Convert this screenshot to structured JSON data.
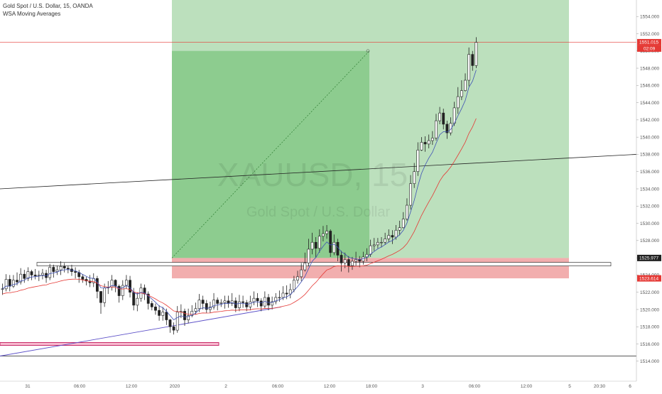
{
  "header": {
    "symbol_line": "Gold Spot / U.S. Dollar, 15, OANDA",
    "indicator_line": "WSA Moving Averages"
  },
  "watermark": {
    "symbol": "XAUUSD, 15",
    "description": "Gold Spot / U.S. Dollar"
  },
  "colors": {
    "bull": "#ffffff",
    "bear": "#222222",
    "wick": "#222222",
    "profit_zone": "#a5d6a7",
    "profit_zone_filled": "#66bb6a",
    "loss_zone": "#ef9a9a",
    "ma_fast": "#3f51b5",
    "ma_slow": "#e53935",
    "current_price_tag": "#e53935",
    "position_tag": "#212121",
    "trendline": "#5c50c8",
    "support_box": "#c2185b"
  },
  "price_axis": {
    "ticks": [
      "1554.000",
      "1552.000",
      "1550.000",
      "1548.000",
      "1546.000",
      "1544.000",
      "1542.000",
      "1540.000",
      "1538.000",
      "1536.000",
      "1534.000",
      "1532.000",
      "1530.000",
      "1528.000",
      "1526.000",
      "1524.000",
      "1522.000",
      "1520.000",
      "1518.000",
      "1516.000",
      "1514.000"
    ],
    "current_price": "1551.015",
    "countdown": "02:09",
    "entry_price": "1525.977",
    "stop_price": "1523.614"
  },
  "time_axis": {
    "ticks": [
      "31",
      "06:00",
      "12:00",
      "2020",
      "2",
      "06:00",
      "12:00",
      "18:00",
      "3",
      "06:00",
      "12:00",
      "5",
      "20:30",
      "6"
    ]
  },
  "chart_data": {
    "type": "candlestick",
    "title": "Gold Spot / U.S. Dollar, 15, OANDA",
    "subtitle": "WSA Moving Averages",
    "ylim": [
      1513.5,
      1555.5
    ],
    "grid": false,
    "bar_count": 131,
    "start_ohlc_o": 1522.4,
    "closes": [
      1522.4,
      1523.5,
      1522.7,
      1523.4,
      1523.2,
      1524.1,
      1523.6,
      1524.4,
      1524.0,
      1523.9,
      1524.0,
      1524.2,
      1523.7,
      1524.9,
      1524.4,
      1524.6,
      1525.0,
      1524.8,
      1524.7,
      1524.4,
      1524.3,
      1523.8,
      1523.5,
      1523.3,
      1523.1,
      1523.6,
      1522.1,
      1520.8,
      1522.5,
      1522.6,
      1523.4,
      1522.7,
      1521.6,
      1522.8,
      1523.4,
      1522.0,
      1520.5,
      1521.3,
      1522.5,
      1521.8,
      1520.7,
      1520.3,
      1519.9,
      1519.3,
      1519.7,
      1518.8,
      1518.0,
      1517.6,
      1519.7,
      1519.8,
      1518.8,
      1519.3,
      1519.8,
      1520.1,
      1521.1,
      1520.7,
      1520.0,
      1520.3,
      1521.1,
      1520.7,
      1520.8,
      1521.0,
      1520.7,
      1521.0,
      1520.2,
      1520.9,
      1520.8,
      1520.3,
      1520.9,
      1521.3,
      1521.0,
      1520.4,
      1521.4,
      1520.5,
      1520.9,
      1521.4,
      1521.4,
      1521.9,
      1521.8,
      1522.3,
      1523.4,
      1523.8,
      1524.6,
      1525.4,
      1527.0,
      1527.8,
      1527.1,
      1528.5,
      1528.8,
      1529.1,
      1526.6,
      1527.8,
      1526.3,
      1525.4,
      1525.8,
      1525.1,
      1525.6,
      1525.8,
      1525.6,
      1526.1,
      1526.4,
      1527.4,
      1527.5,
      1527.8,
      1527.8,
      1528.2,
      1528.6,
      1528.4,
      1529.2,
      1529.5,
      1530.5,
      1532.1,
      1534.6,
      1536.0,
      1538.5,
      1539.4,
      1539.2,
      1539.6,
      1539.9,
      1541.9,
      1542.8,
      1541.5,
      1540.5,
      1541.6,
      1543.4,
      1544.7,
      1545.4,
      1546.6,
      1549.6,
      1548.3,
      1551.0
    ],
    "highs": [
      1523.0,
      1524.1,
      1524.0,
      1524.0,
      1524.3,
      1524.8,
      1524.6,
      1524.9,
      1524.6,
      1524.7,
      1524.5,
      1524.7,
      1524.6,
      1525.3,
      1525.2,
      1525.1,
      1525.6,
      1525.4,
      1525.1,
      1525.2,
      1524.9,
      1524.6,
      1524.1,
      1523.8,
      1524.0,
      1524.2,
      1523.9,
      1521.7,
      1523.0,
      1523.3,
      1524.0,
      1523.5,
      1522.9,
      1523.4,
      1524.0,
      1523.9,
      1522.5,
      1522.0,
      1523.0,
      1522.9,
      1522.1,
      1521.0,
      1520.7,
      1520.5,
      1520.3,
      1520.1,
      1518.9,
      1518.5,
      1520.4,
      1520.6,
      1520.1,
      1520.1,
      1520.5,
      1520.8,
      1521.8,
      1521.6,
      1521.1,
      1520.9,
      1521.9,
      1521.4,
      1521.2,
      1521.6,
      1521.6,
      1521.9,
      1521.4,
      1521.7,
      1521.6,
      1521.1,
      1521.6,
      1522.1,
      1521.9,
      1521.3,
      1522.1,
      1521.8,
      1521.5,
      1521.9,
      1522.2,
      1522.7,
      1522.8,
      1523.0,
      1523.9,
      1524.5,
      1525.4,
      1526.6,
      1528.2,
      1528.9,
      1528.4,
      1529.3,
      1529.7,
      1529.8,
      1529.3,
      1528.7,
      1528.2,
      1526.8,
      1526.6,
      1526.2,
      1526.1,
      1526.7,
      1526.2,
      1526.7,
      1527.1,
      1528.1,
      1528.3,
      1528.3,
      1528.4,
      1528.9,
      1529.3,
      1529.2,
      1529.8,
      1530.3,
      1531.3,
      1532.9,
      1535.6,
      1537.0,
      1539.4,
      1540.0,
      1540.1,
      1540.3,
      1540.7,
      1542.7,
      1543.5,
      1543.3,
      1541.9,
      1542.3,
      1544.1,
      1545.8,
      1546.6,
      1547.4,
      1550.4,
      1550.0,
      1551.6
    ],
    "lows": [
      1521.7,
      1522.1,
      1522.1,
      1522.5,
      1522.8,
      1522.9,
      1523.1,
      1523.3,
      1523.4,
      1523.5,
      1523.3,
      1523.5,
      1523.1,
      1523.4,
      1523.7,
      1524.0,
      1524.0,
      1524.3,
      1524.2,
      1523.9,
      1523.6,
      1523.1,
      1523.1,
      1522.8,
      1522.6,
      1522.6,
      1521.3,
      1519.5,
      1520.3,
      1521.8,
      1522.2,
      1522.0,
      1520.8,
      1521.1,
      1522.4,
      1521.4,
      1519.9,
      1519.8,
      1520.9,
      1521.1,
      1520.0,
      1519.9,
      1519.4,
      1518.7,
      1518.7,
      1518.2,
      1517.3,
      1517.1,
      1517.3,
      1519.0,
      1518.1,
      1518.4,
      1519.1,
      1519.4,
      1519.7,
      1520.0,
      1519.6,
      1519.6,
      1520.0,
      1519.9,
      1520.3,
      1520.1,
      1520.2,
      1520.4,
      1519.7,
      1519.8,
      1520.2,
      1519.8,
      1519.9,
      1520.5,
      1520.3,
      1519.8,
      1520.1,
      1519.9,
      1520.0,
      1520.6,
      1520.9,
      1521.1,
      1521.2,
      1521.3,
      1522.0,
      1523.0,
      1523.3,
      1524.4,
      1525.0,
      1526.4,
      1526.0,
      1526.6,
      1527.9,
      1528.2,
      1526.1,
      1526.3,
      1525.6,
      1524.4,
      1524.8,
      1524.3,
      1524.6,
      1525.1,
      1524.9,
      1525.2,
      1525.6,
      1526.1,
      1526.8,
      1527.1,
      1527.2,
      1527.5,
      1527.8,
      1527.6,
      1528.1,
      1528.6,
      1529.4,
      1530.3,
      1531.6,
      1534.1,
      1535.5,
      1538.4,
      1538.3,
      1538.7,
      1539.1,
      1539.6,
      1541.5,
      1540.9,
      1539.8,
      1540.2,
      1541.3,
      1542.7,
      1544.3,
      1545.3,
      1545.9,
      1547.7,
      1548.0
    ],
    "series": [
      {
        "name": "ma_fast"
      },
      {
        "name": "ma_slow"
      }
    ],
    "annotations": {
      "long_position": {
        "entry": 1525.977,
        "stop": 1523.614,
        "target": 1550.0,
        "top_zone": 1557.0
      },
      "horizontal_line": 1551.015,
      "resistance_box": {
        "price": 1525.3
      },
      "support_box": {
        "price": 1516.0
      },
      "bottom_line": 1514.6,
      "rising_line": {
        "from_price": 1514.6,
        "to_price": 1520.3
      },
      "long_line": {
        "from_price": 1534.0,
        "to_price": 1538.0
      }
    }
  }
}
